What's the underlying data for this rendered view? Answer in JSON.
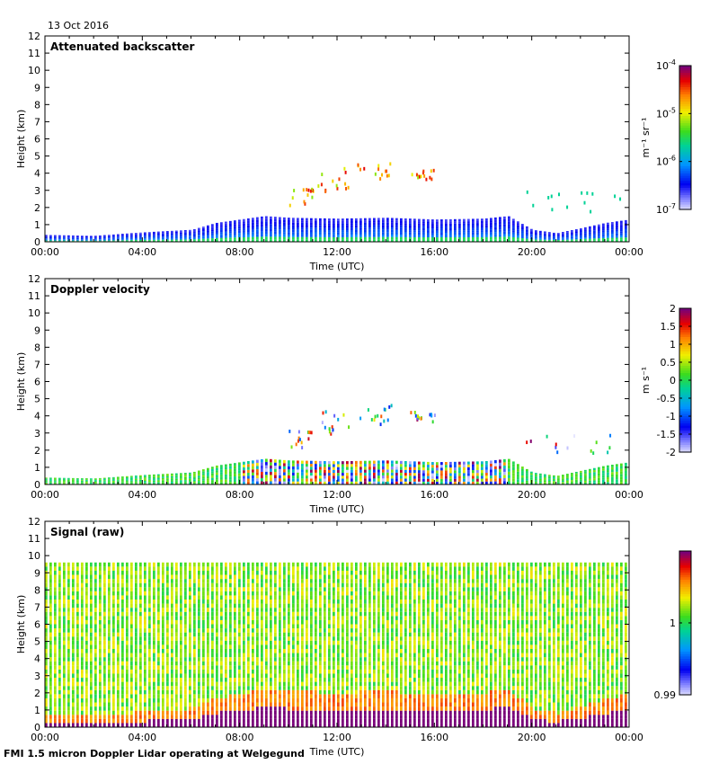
{
  "header": {
    "date": "13 Oct 2016"
  },
  "footer": {
    "caption": "FMI 1.5 micron Doppler Lidar operating at Welgegund"
  },
  "chart_data": [
    {
      "type": "heatmap",
      "title": "Attenuated backscatter",
      "xlabel": "Time (UTC)",
      "ylabel": "Height (km)",
      "x_ticks": [
        "00:00",
        "04:00",
        "08:00",
        "12:00",
        "16:00",
        "20:00",
        "00:00"
      ],
      "x_range_hours": [
        0,
        24
      ],
      "y_ticks": [
        0,
        1,
        2,
        3,
        4,
        5,
        6,
        7,
        8,
        9,
        10,
        11,
        12
      ],
      "ylim": [
        0,
        12
      ],
      "colorbar": {
        "scale": "log",
        "ticks": [
          "10^-4",
          "10^-5",
          "10^-6",
          "10^-7"
        ],
        "range": [
          1e-07,
          0.0001
        ],
        "label": "m^-1 sr^-1"
      },
      "boundary_layer_top_km": [
        [
          0,
          0.4
        ],
        [
          2,
          0.35
        ],
        [
          4,
          0.55
        ],
        [
          6,
          0.7
        ],
        [
          7,
          1.1
        ],
        [
          8,
          1.3
        ],
        [
          9,
          1.5
        ],
        [
          10,
          1.4
        ],
        [
          12,
          1.35
        ],
        [
          14,
          1.4
        ],
        [
          16,
          1.3
        ],
        [
          18,
          1.35
        ],
        [
          19,
          1.5
        ],
        [
          20,
          0.7
        ],
        [
          21,
          0.5
        ],
        [
          22,
          0.8
        ],
        [
          23,
          1.1
        ],
        [
          24,
          1.3
        ]
      ],
      "cloud_features": [
        {
          "time_h": [
            10,
            11
          ],
          "height_km": [
            2.0,
            3.0
          ]
        },
        {
          "time_h": [
            11.2,
            12.5
          ],
          "height_km": [
            2.8,
            4.2
          ]
        },
        {
          "time_h": [
            12.8,
            14.3
          ],
          "height_km": [
            3.4,
            4.5
          ]
        },
        {
          "time_h": [
            15,
            16
          ],
          "height_km": [
            3.5,
            4.1
          ]
        },
        {
          "time_h": [
            19.5,
            24
          ],
          "height_km": [
            1.6,
            2.8
          ]
        }
      ]
    },
    {
      "type": "heatmap",
      "title": "Doppler velocity",
      "xlabel": "Time (UTC)",
      "ylabel": "Height (km)",
      "x_ticks": [
        "00:00",
        "04:00",
        "08:00",
        "12:00",
        "16:00",
        "20:00",
        "00:00"
      ],
      "x_range_hours": [
        0,
        24
      ],
      "y_ticks": [
        0,
        1,
        2,
        3,
        4,
        5,
        6,
        7,
        8,
        9,
        10,
        11,
        12
      ],
      "ylim": [
        0,
        12
      ],
      "colorbar": {
        "scale": "linear",
        "ticks": [
          "2",
          "1.5",
          "1",
          "0.5",
          "0",
          "-0.5",
          "-1",
          "-1.5",
          "-2"
        ],
        "range": [
          -2,
          2
        ],
        "label": "m s^-1"
      }
    },
    {
      "type": "heatmap",
      "title": "Signal (raw)",
      "xlabel": "Time (UTC)",
      "ylabel": "Height (km)",
      "x_ticks": [
        "00:00",
        "04:00",
        "08:00",
        "12:00",
        "16:00",
        "20:00",
        "00:00"
      ],
      "x_range_hours": [
        0,
        24
      ],
      "y_ticks": [
        0,
        1,
        2,
        3,
        4,
        5,
        6,
        7,
        8,
        9,
        10,
        11,
        12
      ],
      "ylim": [
        0,
        12
      ],
      "max_range_km": 9.6,
      "colorbar": {
        "scale": "linear",
        "ticks": [
          "1",
          "0.99"
        ],
        "range": [
          0.99,
          1.01
        ],
        "label": ""
      }
    }
  ]
}
